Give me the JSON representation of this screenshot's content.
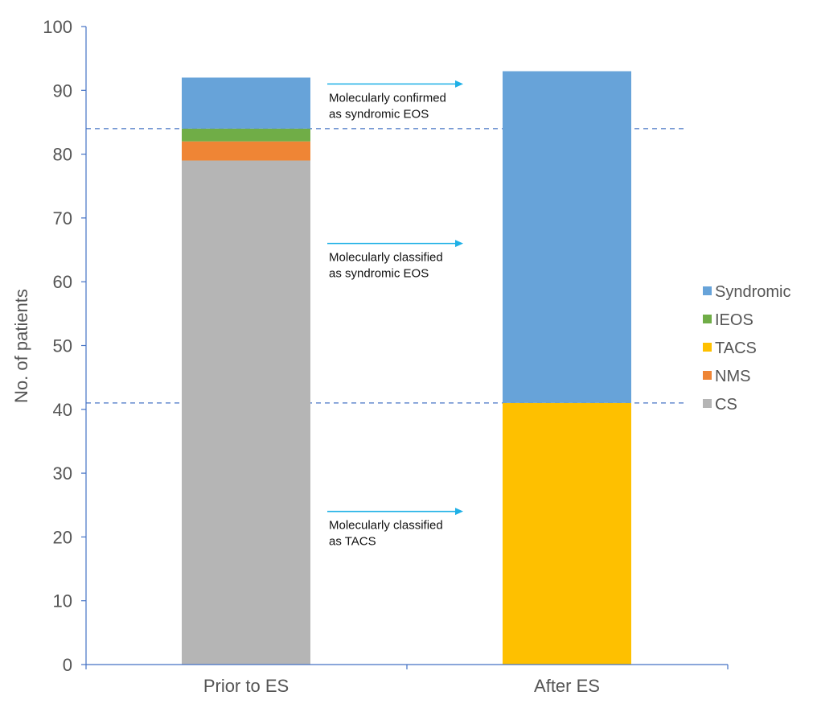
{
  "chart_data": {
    "type": "bar",
    "stacked": true,
    "categories": [
      "Prior to ES",
      "After ES"
    ],
    "series": [
      {
        "name": "CS",
        "color": "#b5b5b5",
        "values": [
          79,
          0
        ]
      },
      {
        "name": "NMS",
        "color": "#ef8535",
        "values": [
          3,
          0
        ]
      },
      {
        "name": "TACS",
        "color": "#fec000",
        "values": [
          0,
          41
        ]
      },
      {
        "name": "IEOS",
        "color": "#70ad47",
        "values": [
          2,
          0
        ]
      },
      {
        "name": "Syndromic",
        "color": "#67a3d9",
        "values": [
          8,
          52
        ]
      }
    ],
    "legend_order": [
      "Syndromic",
      "IEOS",
      "TACS",
      "NMS",
      "CS"
    ],
    "legend_position": "right",
    "title": "",
    "xlabel": "",
    "ylabel": "No. of patients",
    "ylim": [
      0,
      100
    ],
    "yticks": [
      0,
      10,
      20,
      30,
      40,
      50,
      60,
      70,
      80,
      90,
      100
    ],
    "grid": false,
    "reference_lines": [
      84,
      41
    ],
    "reference_line_color": "#4472c4",
    "arrow_color": "#1fb0e6",
    "annotations": [
      {
        "y": 91,
        "lines": [
          "Molecularly confirmed",
          "as syndromic EOS"
        ]
      },
      {
        "y": 66,
        "lines": [
          "Molecularly classified",
          "as syndromic EOS"
        ]
      },
      {
        "y": 24,
        "lines": [
          "Molecularly classified",
          "as TACS"
        ]
      }
    ]
  }
}
